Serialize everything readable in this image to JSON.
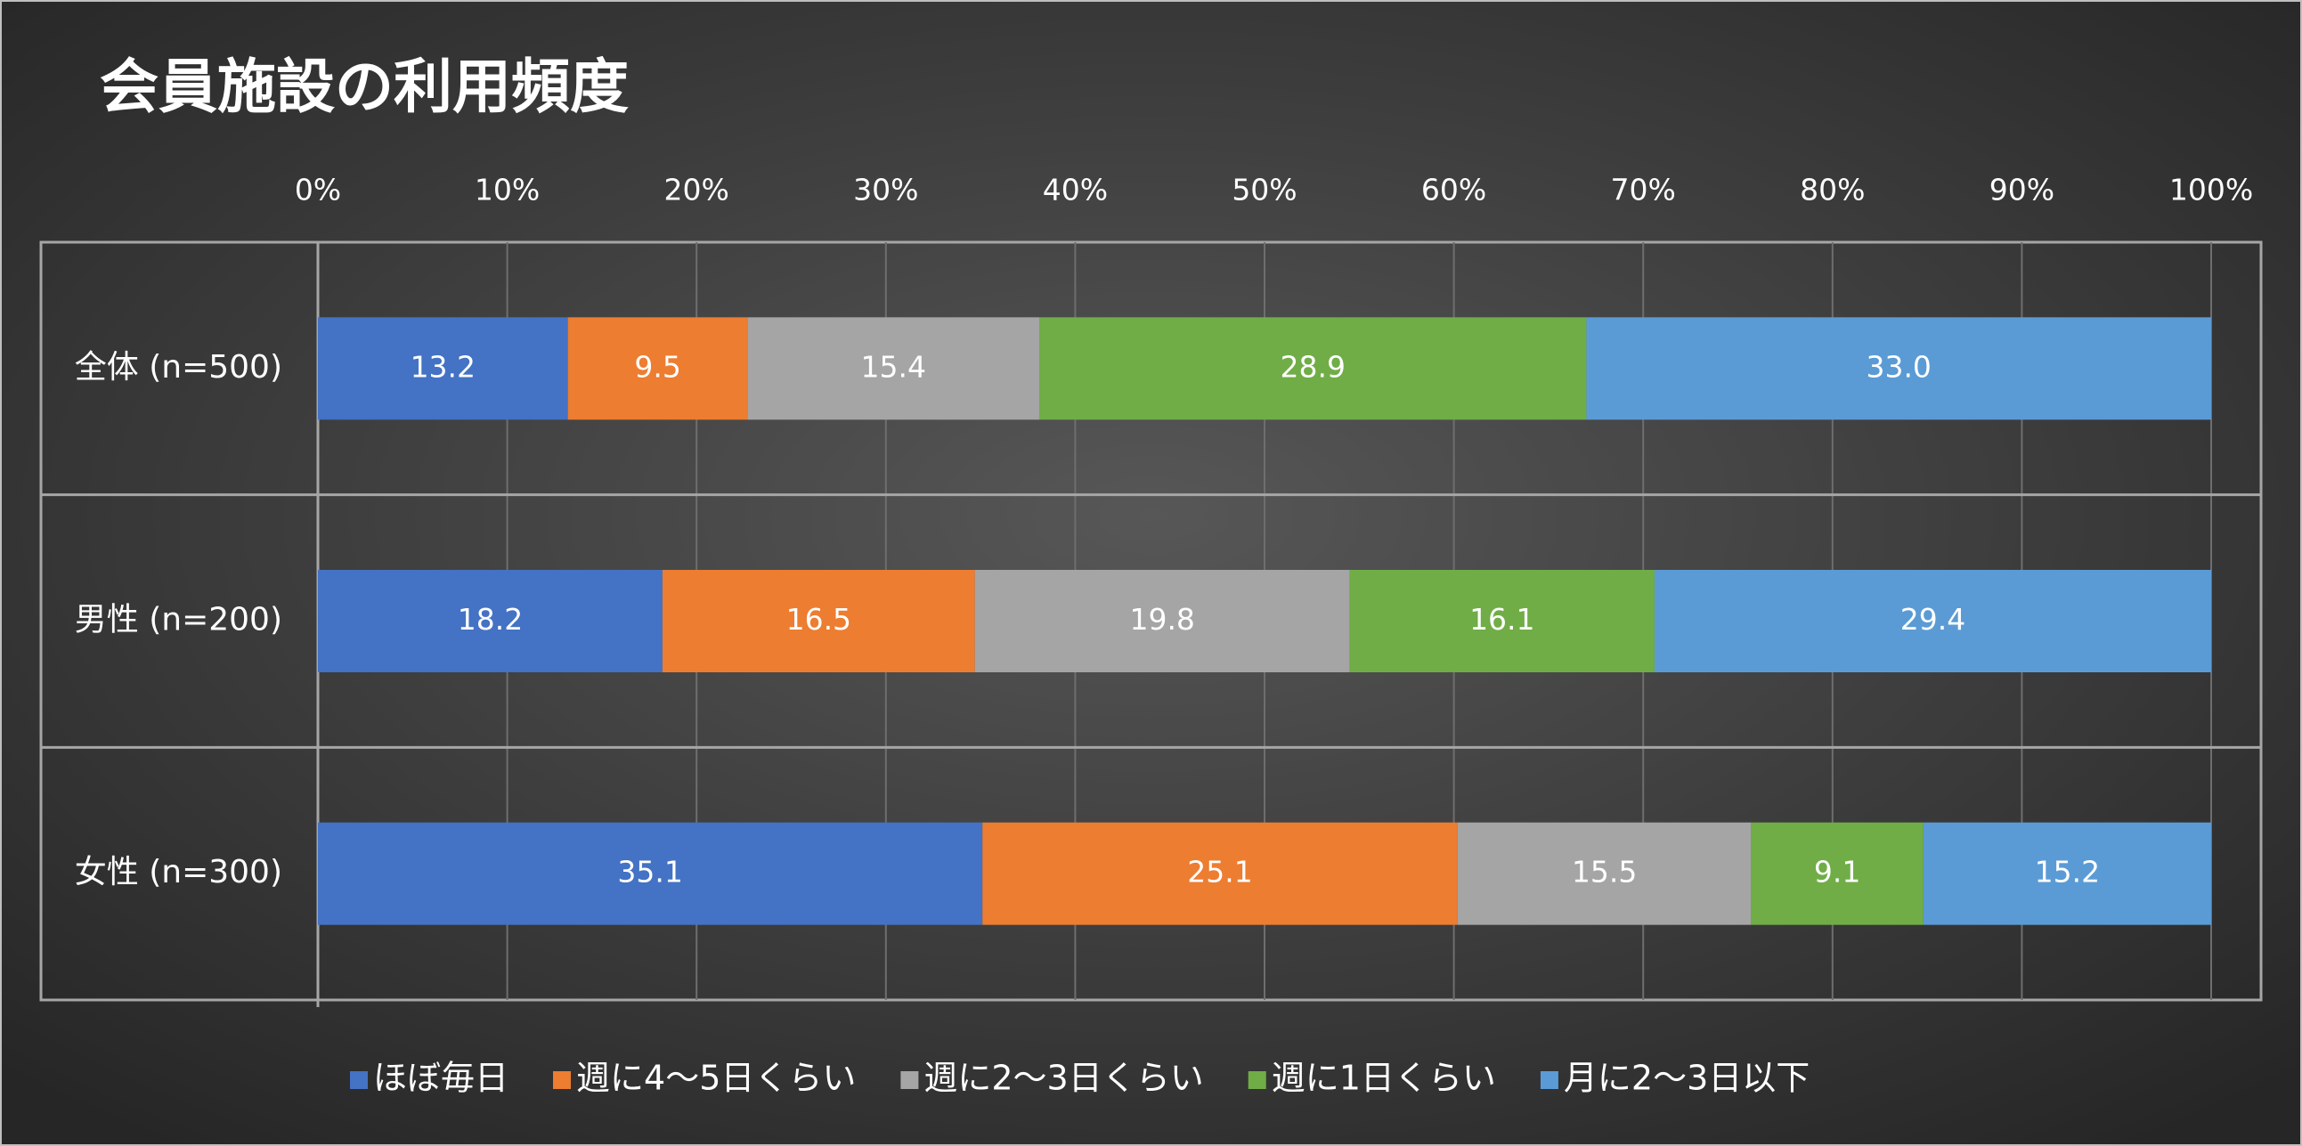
{
  "chart_data": {
    "type": "stacked-bar-horizontal",
    "title": "会員施設の利用頻度",
    "categories": [
      "全体 (n=500)",
      "男性 (n=200)",
      "女性 (n=300)"
    ],
    "series": [
      {
        "name": "ほぼ毎日",
        "color": "#4472c4",
        "values": [
          13.2,
          18.2,
          35.1
        ],
        "value_labels": [
          "13.2",
          "18.2",
          "35.1"
        ]
      },
      {
        "name": "週に4〜5日くらい",
        "color": "#ed7d31",
        "values": [
          9.5,
          16.5,
          25.1
        ],
        "value_labels": [
          "9.5",
          "16.5",
          "25.1"
        ]
      },
      {
        "name": "週に2〜3日くらい",
        "color": "#a5a5a5",
        "values": [
          15.4,
          19.8,
          15.5
        ],
        "value_labels": [
          "15.4",
          "19.8",
          "15.5"
        ]
      },
      {
        "name": "週に1日くらい",
        "color": "#70ad47",
        "values": [
          28.9,
          16.1,
          9.1
        ],
        "value_labels": [
          "28.9",
          "16.1",
          "9.1"
        ]
      },
      {
        "name": "月に2〜3日以下",
        "color": "#5b9bd5",
        "values": [
          33.0,
          29.4,
          15.2
        ],
        "value_labels": [
          "33.0",
          "29.4",
          "15.2"
        ]
      }
    ],
    "xlim": [
      0,
      100
    ],
    "xticks": [
      {
        "value": 0,
        "label": "0%"
      },
      {
        "value": 10,
        "label": "10%"
      },
      {
        "value": 20,
        "label": "20%"
      },
      {
        "value": 30,
        "label": "30%"
      },
      {
        "value": 40,
        "label": "40%"
      },
      {
        "value": 50,
        "label": "50%"
      },
      {
        "value": 60,
        "label": "60%"
      },
      {
        "value": 70,
        "label": "70%"
      },
      {
        "value": 80,
        "label": "80%"
      },
      {
        "value": 90,
        "label": "90%"
      },
      {
        "value": 100,
        "label": "100%"
      }
    ],
    "grid": true,
    "legend": "bottom"
  }
}
